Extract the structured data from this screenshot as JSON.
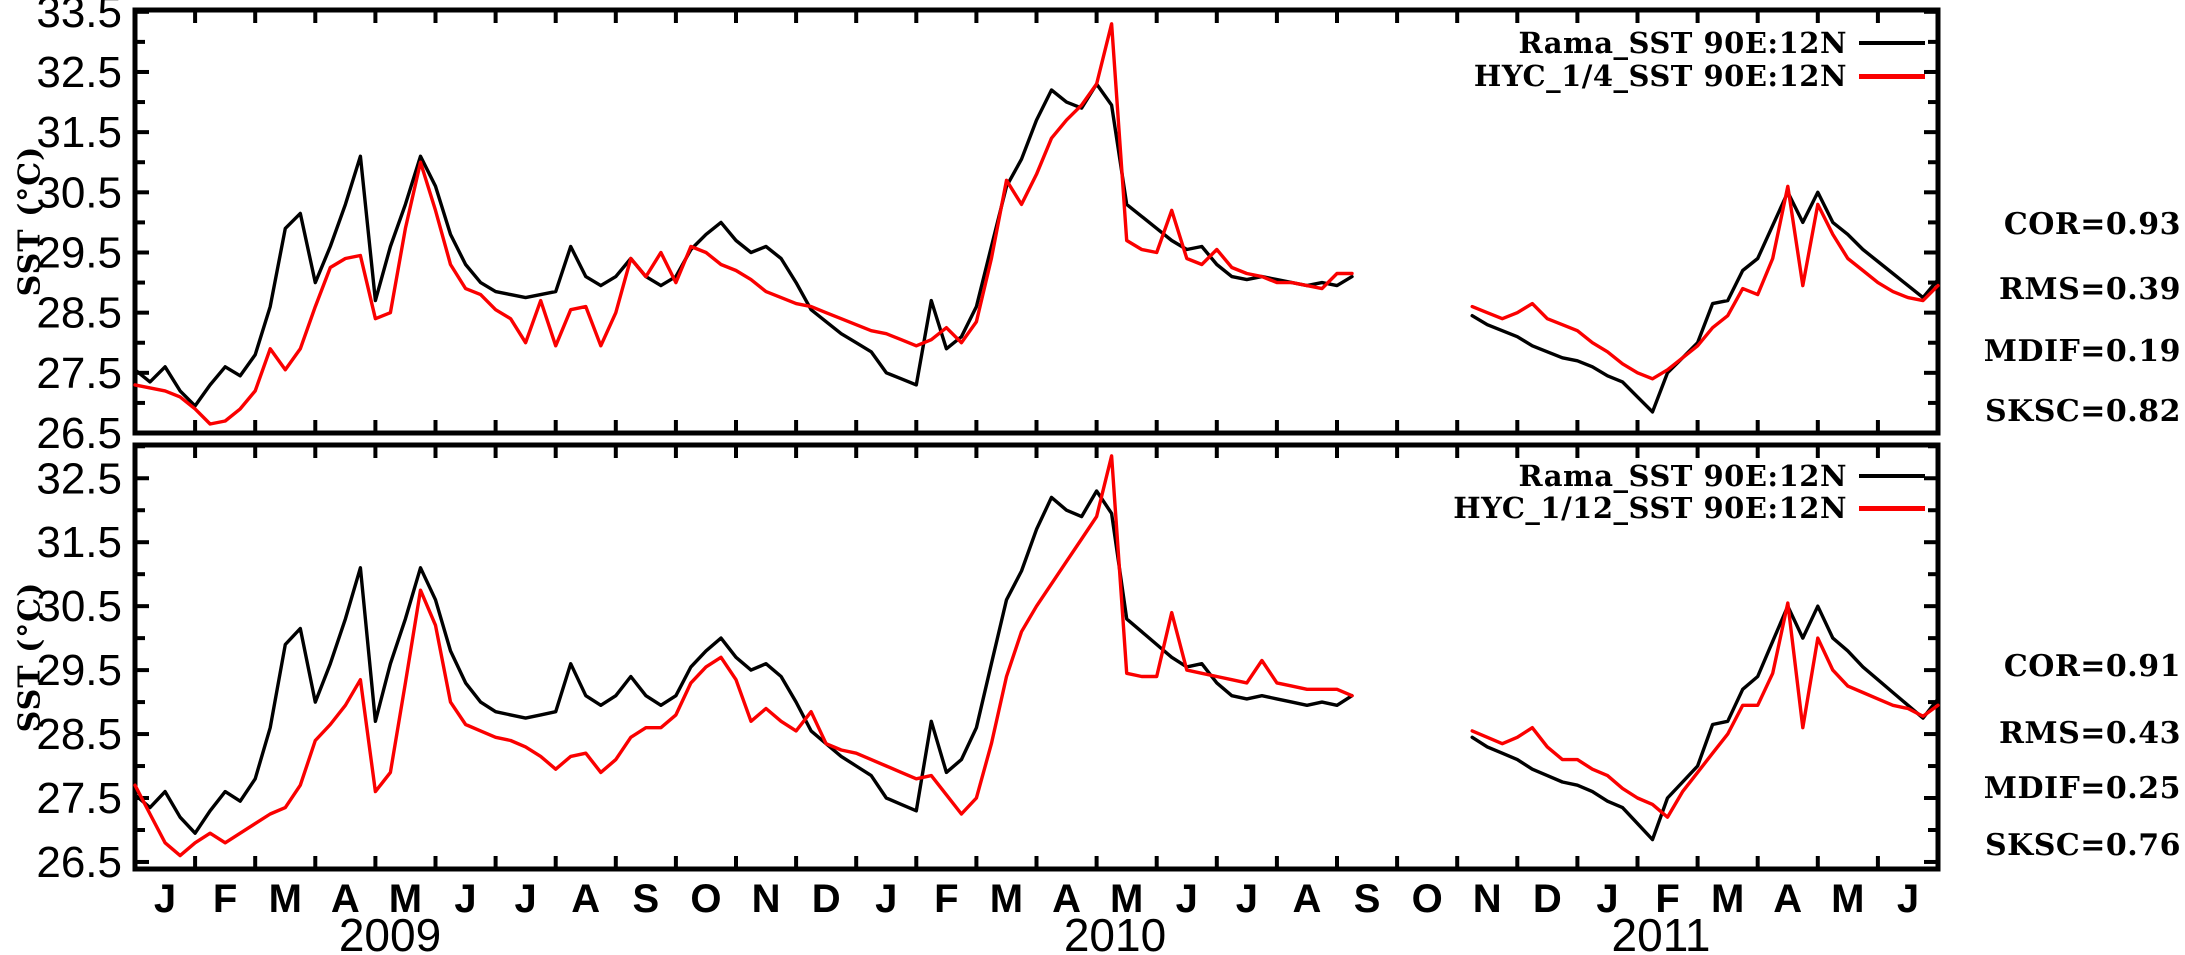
{
  "page": {
    "background": "#ffffff",
    "axis_color": "#000000"
  },
  "axes": {
    "ylabel": "SST (°C)",
    "month_letters": [
      "J",
      "F",
      "M",
      "A",
      "M",
      "J",
      "J",
      "A",
      "S",
      "O",
      "N",
      "D",
      "J",
      "F",
      "M",
      "A",
      "M",
      "J",
      "J",
      "A",
      "S",
      "O",
      "N",
      "D",
      "J",
      "F",
      "M",
      "A",
      "M",
      "J"
    ],
    "years": [
      "2009",
      "2010",
      "2011"
    ]
  },
  "chart_data": [
    {
      "type": "line",
      "panel": "top",
      "title": "",
      "xlabel": "",
      "ylabel": "SST (°C)",
      "ylim": [
        26.5,
        33.53
      ],
      "yticks": [
        33.5,
        32.5,
        31.5,
        30.5,
        29.5,
        28.5,
        27.5,
        26.5
      ],
      "ytick_minor_step": 0.5,
      "x_axis": {
        "start": "2009-01",
        "end": "2011-06",
        "months": 30,
        "points_per_month": 4,
        "tick_every": "month"
      },
      "data_gap": "mid-Sep 2010 through early-Nov 2010",
      "grid": false,
      "legend_position": "top-right",
      "legend": [
        {
          "label": "Rama_SST 90E:12N",
          "color": "#000000"
        },
        {
          "label": "HYC_1/4_SST 90E:12N",
          "color": "#fa0000"
        }
      ],
      "stats": {
        "COR": 0.93,
        "RMS": 0.39,
        "MDIF": 0.19,
        "SKSC": 0.82
      },
      "stats_lines": [
        "COR=0.93",
        "RMS=0.39",
        "MDIF=0.19",
        "SKSC=0.82"
      ],
      "series": [
        {
          "name": "Rama_SST 90E:12N",
          "color": "#000000",
          "values": [
            27.55,
            27.35,
            27.6,
            27.2,
            26.95,
            27.3,
            27.6,
            27.45,
            27.8,
            28.6,
            29.9,
            30.15,
            29.0,
            29.6,
            30.3,
            31.1,
            28.7,
            29.6,
            30.3,
            31.1,
            30.6,
            29.8,
            29.3,
            29.0,
            28.85,
            28.8,
            28.75,
            28.8,
            28.85,
            29.6,
            29.1,
            28.95,
            29.1,
            29.4,
            29.1,
            28.95,
            29.1,
            29.55,
            29.8,
            30.0,
            29.7,
            29.5,
            29.6,
            29.4,
            29.0,
            28.55,
            28.35,
            28.15,
            28.0,
            27.85,
            27.5,
            27.4,
            27.3,
            28.7,
            27.9,
            28.1,
            28.6,
            29.6,
            30.6,
            31.05,
            31.7,
            32.2,
            32.0,
            31.9,
            32.3,
            31.95,
            30.3,
            30.1,
            29.9,
            29.7,
            29.55,
            29.6,
            29.3,
            29.1,
            29.05,
            29.1,
            29.05,
            29.0,
            28.95,
            29.0,
            28.95,
            29.1,
            null,
            null,
            null,
            null,
            null,
            null,
            null,
            28.45,
            28.3,
            28.2,
            28.1,
            27.95,
            27.85,
            27.75,
            27.7,
            27.6,
            27.45,
            27.35,
            27.1,
            26.85,
            27.5,
            27.75,
            28.0,
            28.65,
            28.7,
            29.2,
            29.4,
            29.95,
            30.5,
            30.0,
            30.5,
            30.0,
            29.8,
            29.55,
            29.35,
            29.15,
            28.95,
            28.75,
            29.05
          ]
        },
        {
          "name": "HYC_1/4_SST 90E:12N",
          "color": "#fa0000",
          "values": [
            27.3,
            27.25,
            27.2,
            27.1,
            26.9,
            26.65,
            26.7,
            26.9,
            27.2,
            27.9,
            27.55,
            27.9,
            28.6,
            29.25,
            29.4,
            29.45,
            28.4,
            28.5,
            29.9,
            31.0,
            30.2,
            29.3,
            28.9,
            28.8,
            28.55,
            28.4,
            28.0,
            28.7,
            27.95,
            28.55,
            28.6,
            27.95,
            28.5,
            29.4,
            29.1,
            29.5,
            29.0,
            29.6,
            29.5,
            29.3,
            29.2,
            29.05,
            28.85,
            28.75,
            28.65,
            28.6,
            28.5,
            28.4,
            28.3,
            28.2,
            28.15,
            28.05,
            27.95,
            28.05,
            28.25,
            28.0,
            28.35,
            29.4,
            30.7,
            30.3,
            30.8,
            31.4,
            31.7,
            31.95,
            32.3,
            33.3,
            29.7,
            29.55,
            29.5,
            30.2,
            29.4,
            29.3,
            29.55,
            29.25,
            29.15,
            29.1,
            29.0,
            29.0,
            28.95,
            28.9,
            29.15,
            29.15,
            null,
            null,
            null,
            null,
            null,
            null,
            null,
            28.6,
            28.5,
            28.4,
            28.5,
            28.65,
            28.4,
            28.3,
            28.2,
            28.0,
            27.85,
            27.65,
            27.5,
            27.4,
            27.55,
            27.75,
            27.95,
            28.25,
            28.45,
            28.9,
            28.8,
            29.4,
            30.6,
            28.95,
            30.3,
            29.8,
            29.4,
            29.2,
            29.0,
            28.85,
            28.75,
            28.7,
            28.95
          ]
        }
      ]
    },
    {
      "type": "line",
      "panel": "bottom",
      "title": "",
      "xlabel": "",
      "ylabel": "SST (°C)",
      "ylim": [
        26.39,
        33.02
      ],
      "yticks": [
        32.5,
        31.5,
        30.5,
        29.5,
        28.5,
        27.5,
        26.5
      ],
      "ytick_minor_step": 0.5,
      "x_axis": {
        "start": "2009-01",
        "end": "2011-06",
        "months": 30,
        "points_per_month": 4,
        "tick_every": "month"
      },
      "data_gap": "mid-Sep 2010 through early-Nov 2010",
      "grid": false,
      "legend_position": "top-right",
      "legend": [
        {
          "label": "Rama_SST 90E:12N",
          "color": "#000000"
        },
        {
          "label": "HYC_1/12_SST 90E:12N",
          "color": "#fa0000"
        }
      ],
      "stats": {
        "COR": 0.91,
        "RMS": 0.43,
        "MDIF": 0.25,
        "SKSC": 0.76
      },
      "stats_lines": [
        "COR=0.91",
        "RMS=0.43",
        "MDIF=0.25",
        "SKSC=0.76"
      ],
      "series": [
        {
          "name": "Rama_SST 90E:12N",
          "color": "#000000",
          "values": [
            27.55,
            27.35,
            27.6,
            27.2,
            26.95,
            27.3,
            27.6,
            27.45,
            27.8,
            28.6,
            29.9,
            30.15,
            29.0,
            29.6,
            30.3,
            31.1,
            28.7,
            29.6,
            30.3,
            31.1,
            30.6,
            29.8,
            29.3,
            29.0,
            28.85,
            28.8,
            28.75,
            28.8,
            28.85,
            29.6,
            29.1,
            28.95,
            29.1,
            29.4,
            29.1,
            28.95,
            29.1,
            29.55,
            29.8,
            30.0,
            29.7,
            29.5,
            29.6,
            29.4,
            29.0,
            28.55,
            28.35,
            28.15,
            28.0,
            27.85,
            27.5,
            27.4,
            27.3,
            28.7,
            27.9,
            28.1,
            28.6,
            29.6,
            30.6,
            31.05,
            31.7,
            32.2,
            32.0,
            31.9,
            32.3,
            31.95,
            30.3,
            30.1,
            29.9,
            29.7,
            29.55,
            29.6,
            29.3,
            29.1,
            29.05,
            29.1,
            29.05,
            29.0,
            28.95,
            29.0,
            28.95,
            29.1,
            null,
            null,
            null,
            null,
            null,
            null,
            null,
            28.45,
            28.3,
            28.2,
            28.1,
            27.95,
            27.85,
            27.75,
            27.7,
            27.6,
            27.45,
            27.35,
            27.1,
            26.85,
            27.5,
            27.75,
            28.0,
            28.65,
            28.7,
            29.2,
            29.4,
            29.95,
            30.5,
            30.0,
            30.5,
            30.0,
            29.8,
            29.55,
            29.35,
            29.15,
            28.95,
            28.75,
            29.05
          ]
        },
        {
          "name": "HYC_1/12_SST 90E:12N",
          "color": "#fa0000",
          "values": [
            27.7,
            27.25,
            26.8,
            26.6,
            26.8,
            26.95,
            26.8,
            26.95,
            27.1,
            27.25,
            27.35,
            27.7,
            28.4,
            28.65,
            28.95,
            29.35,
            27.6,
            27.9,
            29.3,
            30.75,
            30.2,
            29.0,
            28.65,
            28.55,
            28.45,
            28.4,
            28.3,
            28.15,
            27.95,
            28.15,
            28.2,
            27.9,
            28.1,
            28.45,
            28.6,
            28.6,
            28.8,
            29.3,
            29.55,
            29.7,
            29.35,
            28.7,
            28.9,
            28.7,
            28.55,
            28.85,
            28.35,
            28.25,
            28.2,
            28.1,
            28.0,
            27.9,
            27.8,
            27.85,
            27.55,
            27.25,
            27.5,
            28.35,
            29.4,
            30.1,
            30.5,
            30.85,
            31.2,
            31.55,
            31.9,
            32.85,
            29.45,
            29.4,
            29.4,
            30.4,
            29.5,
            29.45,
            29.4,
            29.35,
            29.3,
            29.65,
            29.3,
            29.25,
            29.2,
            29.2,
            29.2,
            29.1,
            null,
            null,
            null,
            null,
            null,
            null,
            null,
            28.55,
            28.45,
            28.35,
            28.45,
            28.6,
            28.3,
            28.1,
            28.1,
            27.95,
            27.85,
            27.65,
            27.5,
            27.4,
            27.2,
            27.6,
            27.9,
            28.2,
            28.5,
            28.95,
            28.95,
            29.45,
            30.55,
            28.6,
            30.0,
            29.5,
            29.25,
            29.15,
            29.05,
            28.95,
            28.9,
            28.78,
            28.95
          ]
        }
      ]
    }
  ]
}
